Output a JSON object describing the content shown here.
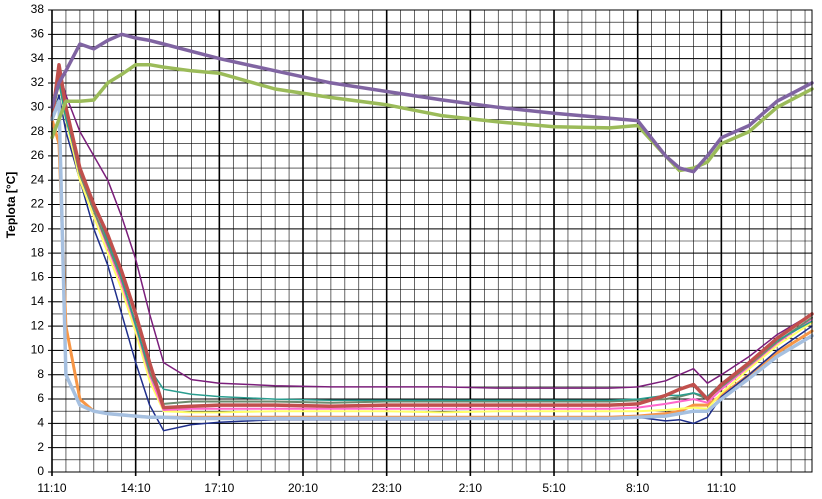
{
  "chart_data": {
    "type": "line",
    "y_label": "Teplota [°C]",
    "ylim": [
      0,
      38
    ],
    "yticks": [
      0,
      2,
      4,
      6,
      8,
      10,
      12,
      14,
      16,
      18,
      20,
      22,
      24,
      26,
      28,
      30,
      32,
      34,
      36,
      38
    ],
    "y_minor_step": 1,
    "xlim": [
      0,
      27.25
    ],
    "xticks": [
      {
        "value": 0,
        "label": "11:10"
      },
      {
        "value": 3,
        "label": "14:10"
      },
      {
        "value": 6,
        "label": "17:10"
      },
      {
        "value": 9,
        "label": "20:10"
      },
      {
        "value": 12,
        "label": "23:10"
      },
      {
        "value": 15,
        "label": "2:10"
      },
      {
        "value": 18,
        "label": "5:10"
      },
      {
        "value": 21,
        "label": "8:10"
      },
      {
        "value": 24,
        "label": "11:10"
      }
    ],
    "x_minor_step": 0.5,
    "grid": true,
    "x": [
      0,
      0.25,
      0.5,
      1,
      1.5,
      2,
      2.5,
      3,
      3.5,
      4,
      5,
      6,
      8,
      10,
      12,
      14,
      16,
      18,
      20,
      21,
      22,
      22.5,
      23,
      23.5,
      24,
      25,
      26,
      27.25
    ],
    "series": [
      {
        "color": "#f79646",
        "width": 3,
        "values": [
          29,
          27,
          12,
          6,
          5,
          4.8,
          4.7,
          4.6,
          4.5,
          4.5,
          4.5,
          4.5,
          4.5,
          4.5,
          4.5,
          4.5,
          4.5,
          4.5,
          4.5,
          4.6,
          4.8,
          5,
          5.5,
          5.5,
          6.3,
          8,
          9.8,
          11.6
        ]
      },
      {
        "color": "#1f2f8c",
        "width": 1.5,
        "values": [
          29,
          31,
          28,
          24,
          20,
          17,
          13,
          9,
          5.5,
          3.4,
          3.9,
          4.1,
          4.3,
          4.3,
          4.3,
          4.3,
          4.4,
          4.4,
          4.4,
          4.5,
          4.2,
          4.3,
          4,
          4.5,
          6.2,
          8,
          10,
          12
        ]
      },
      {
        "color": "#ffff66",
        "width": 2,
        "values": [
          29,
          32,
          29,
          24,
          21,
          18,
          15,
          11.5,
          7.5,
          5,
          4.9,
          4.9,
          5,
          5,
          5,
          4.9,
          5,
          5,
          5,
          5,
          5.1,
          5.2,
          5.3,
          5.2,
          6.5,
          8.5,
          10.4,
          12.3
        ]
      },
      {
        "color": "#ff66cc",
        "width": 2,
        "values": [
          29,
          32.5,
          29.5,
          24.5,
          21.5,
          18.5,
          15.5,
          12,
          8,
          5.1,
          5.2,
          5.2,
          5.2,
          5.2,
          5.2,
          5.2,
          5.2,
          5.2,
          5.2,
          5.3,
          5.6,
          5.8,
          6,
          5.7,
          6.8,
          8.7,
          10.6,
          12.6
        ]
      },
      {
        "color": "#6d8a6d",
        "width": 2,
        "values": [
          29,
          32.5,
          29.5,
          24.5,
          21.5,
          18.7,
          15.8,
          12.2,
          8.2,
          5.6,
          5.8,
          5.8,
          5.8,
          5.7,
          5.8,
          5.8,
          5.8,
          5.8,
          5.8,
          5.9,
          6,
          6.2,
          6.5,
          6,
          7,
          8.8,
          10.7,
          12.7
        ]
      },
      {
        "color": "#2a9d8f",
        "width": 1.5,
        "values": [
          29,
          32,
          29,
          25,
          22,
          19,
          16,
          12,
          8.5,
          6.8,
          6.4,
          6.2,
          6,
          5.9,
          5.9,
          5.9,
          5.9,
          5.9,
          5.9,
          6,
          6.3,
          6.3,
          6.5,
          6.2,
          7.3,
          9,
          10.8,
          12.4
        ]
      },
      {
        "color": "#7b1e7b",
        "width": 1.5,
        "values": [
          29,
          33,
          31,
          28,
          26,
          24,
          21,
          17.5,
          13,
          9,
          7.6,
          7.3,
          7.1,
          7,
          7,
          7,
          6.9,
          6.9,
          6.9,
          7,
          7.5,
          8,
          8.5,
          7.3,
          8,
          9.5,
          11.3,
          13
        ]
      },
      {
        "color": "#c0504d",
        "width": 3.5,
        "values": [
          29,
          33.5,
          30,
          25,
          22,
          19.5,
          16.5,
          13,
          9,
          5.3,
          5.4,
          5.5,
          5.5,
          5.4,
          5.5,
          5.5,
          5.5,
          5.5,
          5.5,
          5.6,
          6.3,
          6.8,
          7.2,
          6,
          7.2,
          9,
          11,
          13
        ]
      },
      {
        "color": "#a6c0e0",
        "width": 3.5,
        "values": [
          29,
          30.5,
          8,
          5.5,
          5,
          4.8,
          4.7,
          4.6,
          4.5,
          4.5,
          4.4,
          4.4,
          4.4,
          4.4,
          4.4,
          4.4,
          4.4,
          4.4,
          4.4,
          4.5,
          4.6,
          4.8,
          5,
          5,
          6,
          7.7,
          9.5,
          11.2
        ]
      },
      {
        "color": "#9bbb59",
        "width": 3.5,
        "values": [
          27.5,
          29,
          30.5,
          30.5,
          30.6,
          32,
          32.7,
          33.5,
          33.5,
          33.3,
          33,
          32.8,
          31.5,
          30.8,
          30.2,
          29.3,
          28.8,
          28.4,
          28.3,
          28.5,
          26,
          24.8,
          25,
          25.5,
          27,
          28,
          30,
          31.5
        ]
      },
      {
        "color": "#8064a2",
        "width": 3.5,
        "values": [
          30,
          32,
          33,
          35.2,
          34.8,
          35.5,
          36,
          35.7,
          35.5,
          35.2,
          34.6,
          34,
          33,
          32,
          31.3,
          30.6,
          30,
          29.5,
          29.1,
          28.9,
          26,
          25,
          24.7,
          26,
          27.5,
          28.5,
          30.5,
          32
        ]
      }
    ]
  }
}
